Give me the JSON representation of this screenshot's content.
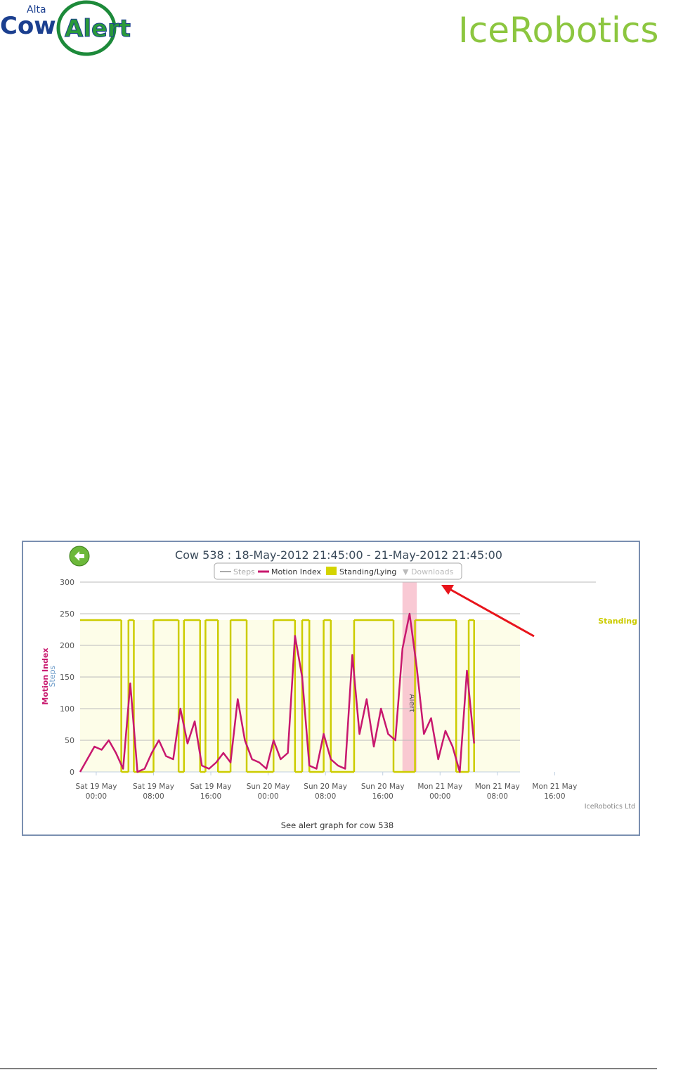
{
  "header": {
    "brand_small": "Alta",
    "brand_cow": "Cow",
    "brand_alert": "Alert",
    "company": "IceRobotics"
  },
  "chart_data": {
    "type": "line",
    "title": "Cow 538 : 18-May-2012 21:45:00 - 21-May-2012 21:45:00",
    "y_label_primary": "Motion Index",
    "y_label_secondary": "Steps",
    "state_label": "Standing",
    "annotation": "Alert",
    "credits": "IceRobotics Ltd",
    "caption": "See alert graph for cow 538",
    "downloads": "▼ Downloads",
    "xlim": [
      "2012-05-18T21:45",
      "2012-05-21T21:45"
    ],
    "ylim": [
      0,
      300
    ],
    "yticks": [
      0,
      50,
      100,
      150,
      200,
      250,
      300
    ],
    "grid": true,
    "xticks": [
      {
        "value": "2012-05-19T00:00",
        "label": "Sat 19 May 00:00"
      },
      {
        "value": "2012-05-19T08:00",
        "label": "Sat 19 May 08:00"
      },
      {
        "value": "2012-05-19T16:00",
        "label": "Sat 19 May 16:00"
      },
      {
        "value": "2012-05-20T00:00",
        "label": "Sun 20 May 00:00"
      },
      {
        "value": "2012-05-20T08:00",
        "label": "Sun 20 May 08:00"
      },
      {
        "value": "2012-05-20T16:00",
        "label": "Sun 20 May 16:00"
      },
      {
        "value": "2012-05-21T00:00",
        "label": "Mon 21 May 00:00"
      },
      {
        "value": "2012-05-21T08:00",
        "label": "Mon 21 May 08:00"
      },
      {
        "value": "2012-05-21T16:00",
        "label": "Mon 21 May 16:00"
      }
    ],
    "alert_band": [
      "2012-05-20T18:45",
      "2012-05-20T20:45"
    ],
    "series": [
      {
        "name": "Steps",
        "color": "#aaaaaa"
      },
      {
        "name": "Motion Index",
        "color": "#c8186e",
        "x": [
          "2012-05-18T21:45",
          "2012-05-18T22:45",
          "2012-05-18T23:45",
          "2012-05-19T00:45",
          "2012-05-19T01:45",
          "2012-05-19T02:45",
          "2012-05-19T03:45",
          "2012-05-19T04:45",
          "2012-05-19T05:45",
          "2012-05-19T06:45",
          "2012-05-19T07:45",
          "2012-05-19T08:45",
          "2012-05-19T09:45",
          "2012-05-19T10:45",
          "2012-05-19T11:45",
          "2012-05-19T12:45",
          "2012-05-19T13:45",
          "2012-05-19T14:45",
          "2012-05-19T15:45",
          "2012-05-19T16:45",
          "2012-05-19T17:45",
          "2012-05-19T18:45",
          "2012-05-19T19:45",
          "2012-05-19T20:45",
          "2012-05-19T21:45",
          "2012-05-19T22:45",
          "2012-05-19T23:45",
          "2012-05-20T00:45",
          "2012-05-20T01:45",
          "2012-05-20T02:45",
          "2012-05-20T03:45",
          "2012-05-20T04:45",
          "2012-05-20T05:45",
          "2012-05-20T06:45",
          "2012-05-20T07:45",
          "2012-05-20T08:45",
          "2012-05-20T09:45",
          "2012-05-20T10:45",
          "2012-05-20T11:45",
          "2012-05-20T12:45",
          "2012-05-20T13:45",
          "2012-05-20T14:45",
          "2012-05-20T15:45",
          "2012-05-20T16:45",
          "2012-05-20T17:45",
          "2012-05-20T18:45",
          "2012-05-20T19:45",
          "2012-05-20T20:45",
          "2012-05-20T21:45",
          "2012-05-20T22:45",
          "2012-05-20T23:45",
          "2012-05-21T00:45",
          "2012-05-21T01:45",
          "2012-05-21T02:45",
          "2012-05-21T03:45",
          "2012-05-21T04:45"
        ],
        "values": [
          0,
          20,
          40,
          35,
          50,
          30,
          5,
          140,
          0,
          5,
          30,
          50,
          25,
          20,
          100,
          45,
          80,
          10,
          5,
          15,
          30,
          15,
          115,
          50,
          20,
          15,
          5,
          50,
          20,
          30,
          215,
          150,
          10,
          5,
          60,
          20,
          10,
          5,
          185,
          60,
          115,
          40,
          100,
          60,
          50,
          195,
          250,
          165,
          60,
          85,
          20,
          65,
          40,
          0,
          160,
          45
        ]
      },
      {
        "name": "Standing/Lying",
        "color": "#cccc00",
        "fill": "#d4d400",
        "x": [
          "2012-05-18T21:45",
          "2012-05-19T03:30",
          "2012-05-19T04:30",
          "2012-05-19T05:15",
          "2012-05-19T08:00",
          "2012-05-19T11:30",
          "2012-05-19T12:15",
          "2012-05-19T14:30",
          "2012-05-19T15:15",
          "2012-05-19T17:00",
          "2012-05-19T18:45",
          "2012-05-19T21:00",
          "2012-05-20T00:45",
          "2012-05-20T03:45",
          "2012-05-20T04:45",
          "2012-05-20T05:45",
          "2012-05-20T07:45",
          "2012-05-20T08:45",
          "2012-05-20T12:00",
          "2012-05-20T17:30",
          "2012-05-20T20:30",
          "2012-05-21T02:15",
          "2012-05-21T04:00",
          "2012-05-21T04:45"
        ],
        "values": [
          240,
          0,
          240,
          0,
          240,
          0,
          240,
          0,
          240,
          0,
          240,
          0,
          240,
          0,
          240,
          0,
          240,
          0,
          240,
          0,
          240,
          0,
          240,
          0
        ]
      }
    ]
  }
}
